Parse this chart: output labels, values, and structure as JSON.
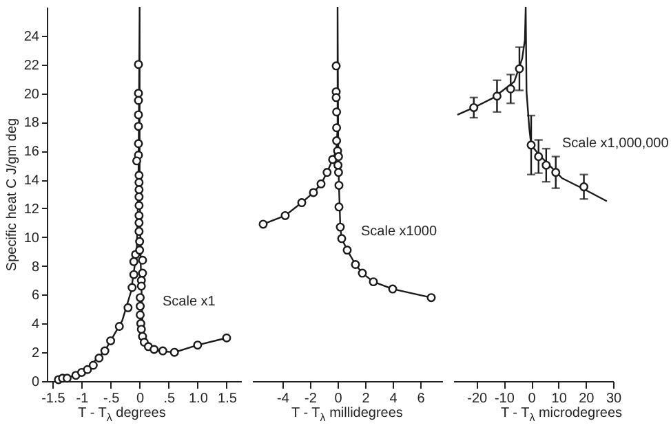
{
  "chart_data": [
    {
      "type": "scatter",
      "ylabel": "Specific heat C  J/gm deg",
      "xlabel": "T - T$_{λ}$  degrees",
      "xlim": [
        -1.6,
        1.75
      ],
      "xticks": [
        -1.5,
        -1,
        {
          "value": -0.5,
          "label": "-.5"
        },
        0,
        {
          "value": 0.5,
          "label": ".5"
        },
        {
          "value": 1,
          "label": "1.0"
        },
        1.5
      ],
      "ylim": [
        0,
        26
      ],
      "yticks": [
        0,
        2,
        4,
        6,
        8,
        10,
        12,
        14,
        16,
        18,
        20,
        22,
        24
      ],
      "annotations": [
        "Scale x1"
      ],
      "series": [
        {
          "type": "line",
          "color": "#1a1a1a",
          "x": [
            -1.4,
            -1.0,
            -0.6,
            -0.3,
            -0.15,
            -0.05,
            -0.02,
            0,
            0,
            0.02,
            0.05,
            0.1,
            0.3,
            0.6,
            1.0,
            1.5
          ],
          "values": [
            0.1,
            0.5,
            2.1,
            4.2,
            6.2,
            9,
            14,
            26,
            14,
            8,
            4,
            2.6,
            2.1,
            2.0,
            2.5,
            3.0
          ]
        },
        {
          "marker": "circle",
          "color": "#1a1a1a",
          "x": [
            -1.4,
            -1.33,
            -1.25,
            -1.1,
            -1.0,
            -0.9,
            -0.8,
            -0.7,
            -0.6,
            -0.5,
            -0.35,
            -0.2,
            -0.13,
            -0.1,
            -0.1,
            -0.07,
            -0.02,
            -0.02,
            -0.02,
            -0.02,
            -0.02,
            -0.02,
            -0.02,
            -0.05,
            -0.01,
            -0.01,
            -0.01,
            -0.01,
            -0.01,
            -0.01,
            -0.01,
            -0.01,
            0,
            0,
            0.05,
            0.05,
            0.03,
            0.03,
            0.01,
            0.01,
            0.01,
            0.02,
            0.03,
            0.05,
            0.08,
            0.15,
            0.25,
            0.4,
            0.6,
            1.0,
            1.5
          ],
          "values": [
            0.1,
            0.2,
            0.2,
            0.4,
            0.6,
            0.8,
            1.1,
            1.6,
            2.1,
            2.8,
            3.8,
            5.1,
            6.5,
            7.4,
            8.3,
            8.8,
            22,
            20,
            19.5,
            18.5,
            17.7,
            16.5,
            15.7,
            15.3,
            14.3,
            13.8,
            13.3,
            12.8,
            12.2,
            11.5,
            11,
            10.4,
            9.7,
            9.1,
            8.4,
            7.5,
            7,
            6.6,
            5.8,
            5.2,
            4.6,
            4.0,
            3.6,
            3.1,
            2.7,
            2.4,
            2.2,
            2.1,
            2.0,
            2.5,
            3.0
          ]
        }
      ]
    },
    {
      "type": "scatter",
      "xlabel": "T - T$_{λ}$  millidegrees",
      "tick_labels": "x",
      "xlim": [
        -6.2,
        7.6
      ],
      "xticks": [
        -4,
        -2,
        0,
        2,
        4,
        6
      ],
      "ylim": [
        0,
        26
      ],
      "annotations": [
        "Scale x1000"
      ],
      "series": [
        {
          "type": "line",
          "color": "#1a1a1a",
          "x": [
            -5.4,
            -3.8,
            -2.6,
            -1.75,
            -1.2,
            -0.76,
            -0.36,
            -0.1,
            0,
            0,
            0.05,
            0.1,
            0.2,
            0.3,
            0.7,
            1.3,
            1.8,
            2.6,
            4.0,
            6.8
          ],
          "values": [
            10.9,
            11.5,
            12.4,
            13.1,
            13.7,
            14.5,
            15.4,
            16,
            17.5,
            26,
            16,
            13.6,
            10.7,
            9.9,
            9.1,
            8.1,
            7.5,
            6.9,
            6.4,
            5.8
          ]
        },
        {
          "marker": "circle",
          "color": "#1a1a1a",
          "x": [
            -5.4,
            -3.8,
            -2.6,
            -1.75,
            -1.2,
            -0.76,
            -0.36,
            -0.1,
            -0.1,
            -0.1,
            -0.07,
            -0.07,
            -0.07,
            0,
            0.07,
            0.03,
            0.07,
            0.1,
            0.1,
            0.2,
            0.3,
            0.7,
            1.3,
            1.8,
            2.6,
            4.0,
            6.8
          ],
          "values": [
            10.9,
            11.5,
            12.4,
            13.1,
            13.7,
            14.5,
            15.4,
            21.9,
            20.1,
            19.7,
            18.7,
            17.6,
            16.7,
            16,
            15.6,
            15,
            14.5,
            13.6,
            12.1,
            10.7,
            9.9,
            9.1,
            8.1,
            7.5,
            6.9,
            6.4,
            5.8
          ]
        }
      ]
    },
    {
      "type": "scatter",
      "xlabel": "T - T$_{λ}$  microdegrees",
      "tick_labels": "x",
      "xlim": [
        -28.5,
        30
      ],
      "xticks": [
        -20,
        -10,
        0,
        10,
        20,
        30
      ],
      "ylim": [
        0,
        26
      ],
      "annotations": [
        "Scale x1,000,000"
      ],
      "series": [
        {
          "type": "line",
          "color": "#1a1a1a",
          "x": [
            -27,
            -21,
            -13.7,
            -6.2,
            -3.3,
            -2.3,
            -2,
            -1.7,
            -0.7,
            0,
            3,
            11.3,
            19.7,
            27.7
          ],
          "values": [
            18.5,
            19,
            19.7,
            20.8,
            22.4,
            23.7,
            26,
            20.1,
            17.6,
            16.4,
            15.7,
            14.1,
            13.3,
            12.5
          ]
        },
        {
          "marker": "circle",
          "color": "#1a1a1a",
          "x": [
            -21,
            -12.5,
            -7.5,
            -4.3,
            0,
            2.7,
            5.5,
            9,
            19.3
          ],
          "values": [
            19.0,
            19.8,
            20.3,
            21.7,
            16.4,
            15.6,
            15.0,
            14.5,
            13.5
          ],
          "errors": [
            0.7,
            1.1,
            1.0,
            1.5,
            2.05,
            1.15,
            1.15,
            1.1,
            0.85
          ]
        }
      ]
    }
  ]
}
